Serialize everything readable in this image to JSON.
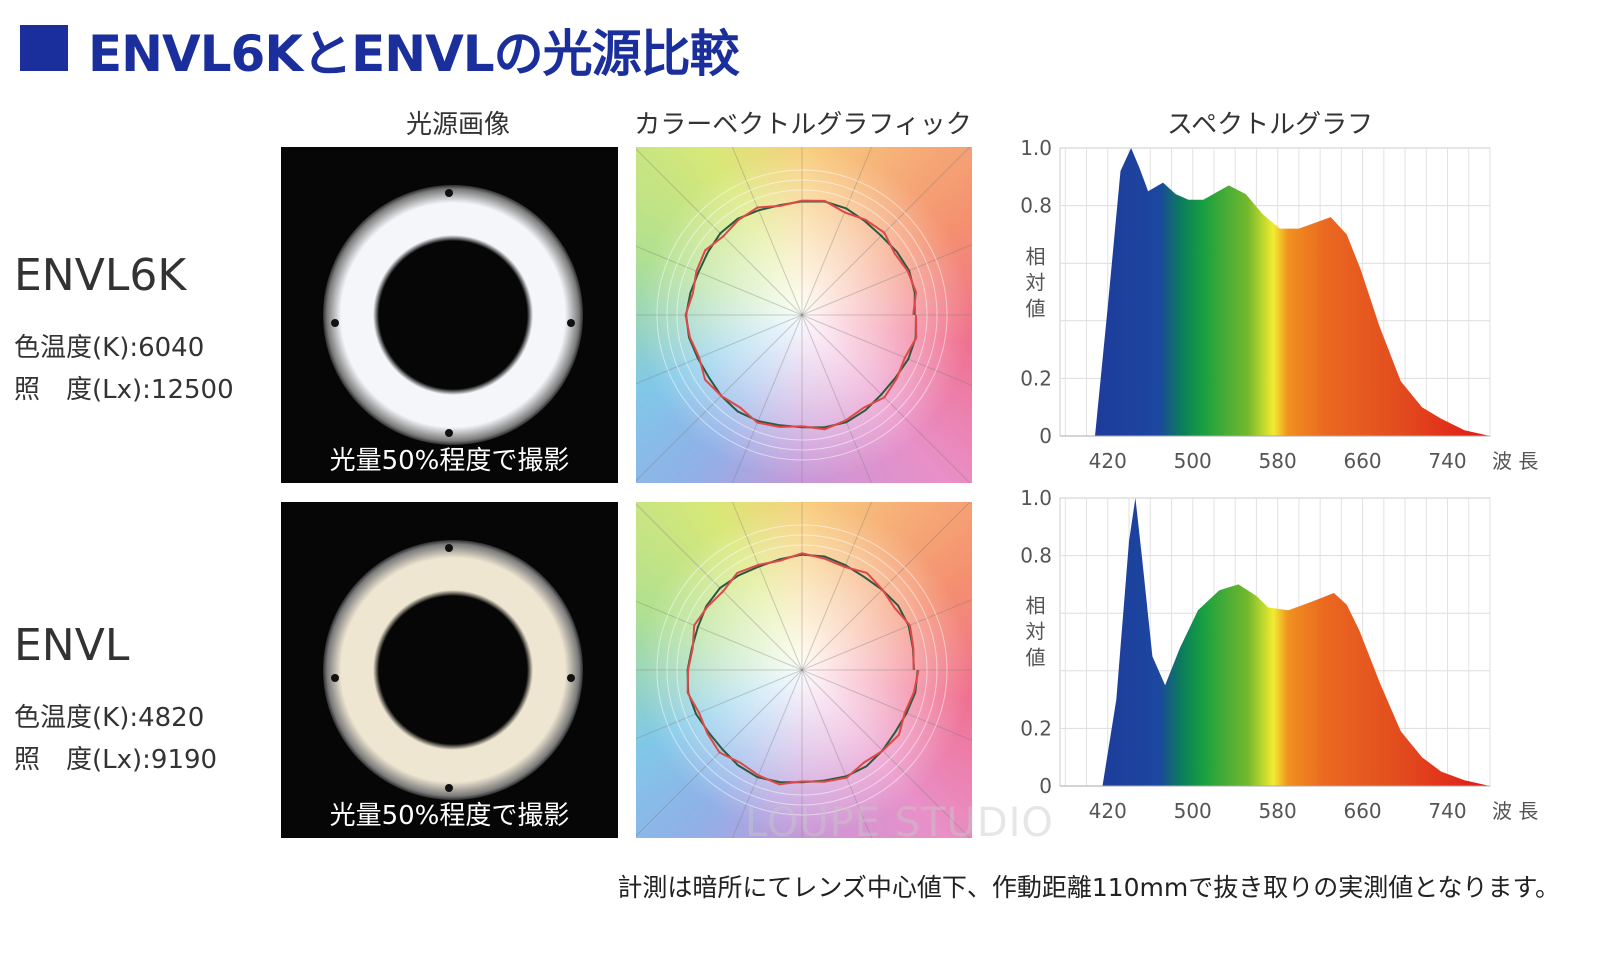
{
  "title": "ENVL6KとENVLの光源比較",
  "columns": {
    "photo": "光源画像",
    "vector": "カラーベクトルグラフィック",
    "spectrum": "スペクトルグラフ"
  },
  "products": [
    {
      "name": "ENVL6K",
      "color_temp": "色温度(K):6040",
      "illuminance": "照　度(Lx):12500",
      "caption": "光量50%程度で撮影",
      "ring_color": "#f4f6fa"
    },
    {
      "name": "ENVL",
      "color_temp": "色温度(K):4820",
      "illuminance": "照　度(Lx):9190",
      "caption": "光量50%程度で撮影",
      "ring_color": "#efe6d2"
    }
  ],
  "footer": "計測は暗所にてレンズ中心値下、作動距離110mmで抜き取りの実測値となります。",
  "watermark": "LOUPE STUDIO",
  "colors": {
    "title": "#1b2f9c",
    "vector_line_1": "#e04848",
    "vector_line_2": "#2a5a40"
  },
  "chart_data": [
    {
      "type": "area",
      "title": "スペクトルグラフ",
      "xlabel": "波 長",
      "ylabel": "相対値",
      "xlim": [
        375,
        780
      ],
      "ylim": [
        0,
        1.0
      ],
      "xticks": [
        "420",
        "500",
        "580",
        "660",
        "740"
      ],
      "yticks": [
        "1.0",
        "0.8",
        "0.2",
        "0"
      ],
      "grid": true,
      "series": [
        {
          "name": "ENVL6K",
          "x": [
            408,
            420,
            432,
            442,
            450,
            458,
            472,
            484,
            496,
            510,
            534,
            550,
            566,
            582,
            600,
            630,
            645,
            658,
            676,
            696,
            716,
            734,
            756,
            780
          ],
          "y": [
            0,
            0.45,
            0.92,
            1.0,
            0.93,
            0.85,
            0.88,
            0.84,
            0.82,
            0.82,
            0.87,
            0.84,
            0.77,
            0.72,
            0.72,
            0.76,
            0.7,
            0.58,
            0.38,
            0.19,
            0.1,
            0.06,
            0.02,
            0
          ]
        }
      ]
    },
    {
      "type": "area",
      "title": "スペクトルグラフ",
      "xlabel": "波 長",
      "ylabel": "相対値",
      "xlim": [
        375,
        780
      ],
      "ylim": [
        0,
        1.0
      ],
      "xticks": [
        "420",
        "500",
        "580",
        "660",
        "740"
      ],
      "yticks": [
        "1.0",
        "0.8",
        "0.2",
        "0"
      ],
      "grid": true,
      "series": [
        {
          "name": "ENVL",
          "x": [
            415,
            428,
            440,
            446,
            452,
            462,
            474,
            488,
            505,
            525,
            543,
            560,
            571,
            590,
            612,
            633,
            645,
            657,
            676,
            696,
            716,
            734,
            756,
            780
          ],
          "y": [
            0,
            0.3,
            0.85,
            1.0,
            0.8,
            0.45,
            0.35,
            0.48,
            0.61,
            0.68,
            0.7,
            0.66,
            0.62,
            0.61,
            0.64,
            0.67,
            0.63,
            0.54,
            0.36,
            0.19,
            0.1,
            0.05,
            0.02,
            0
          ]
        }
      ]
    }
  ]
}
